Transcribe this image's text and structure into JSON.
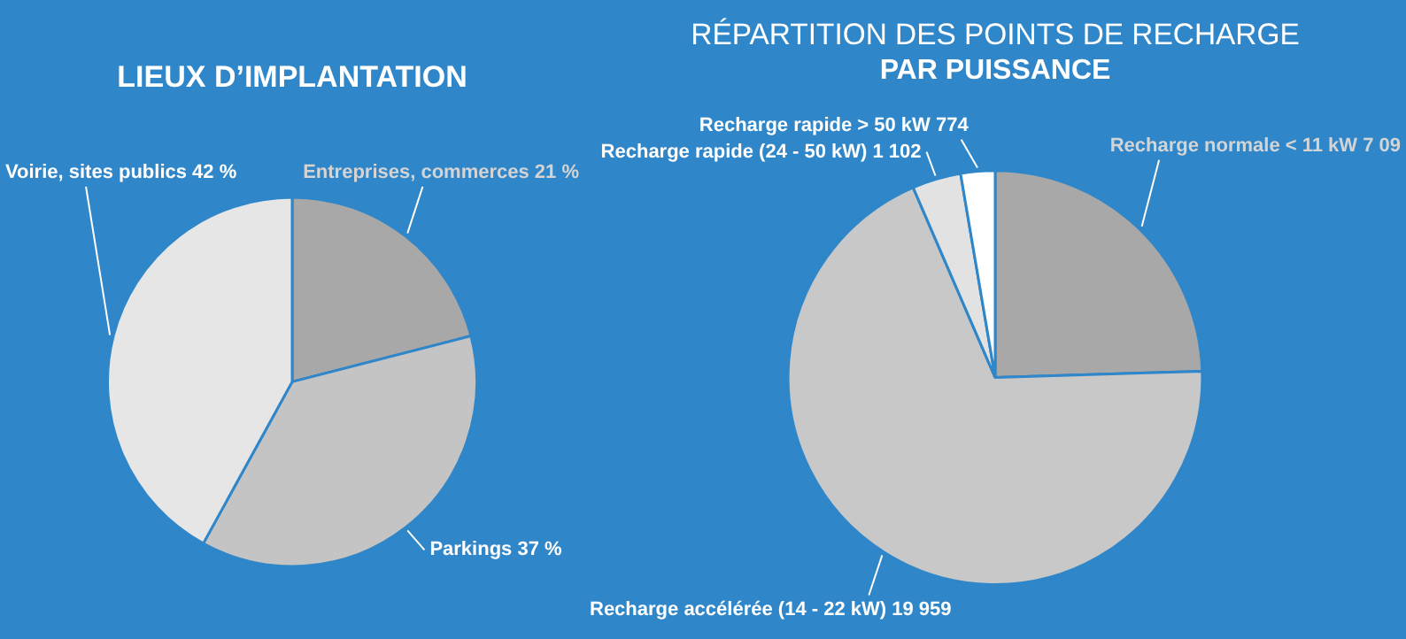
{
  "chart_data": [
    {
      "type": "pie",
      "title": "LIEUX D’IMPLANTATION",
      "categories": [
        "Entreprises, commerces 21 %",
        "Parkings 37 %",
        "Voirie, sites publics 42 %"
      ],
      "values": [
        21,
        37,
        42
      ],
      "colors": [
        "#a8a8a8",
        "#c4c4c4",
        "#e6e6e6"
      ],
      "legend": false
    },
    {
      "type": "pie",
      "title": "RÉPARTITION DES POINTS DE RECHARGE",
      "subtitle": "PAR PUISSANCE",
      "categories": [
        "Recharge normale < 11 kW 7 09",
        "Recharge accélérée (14 - 22 kW) 19 959",
        "Recharge rapide (24 - 50 kW) 1 102",
        "Recharge rapide > 50 kW 774"
      ],
      "values": [
        7090,
        19959,
        1102,
        774
      ],
      "colors": [
        "#a8a8a8",
        "#c8c8c8",
        "#e2e2e2",
        "#ffffff"
      ],
      "legend": false
    }
  ]
}
